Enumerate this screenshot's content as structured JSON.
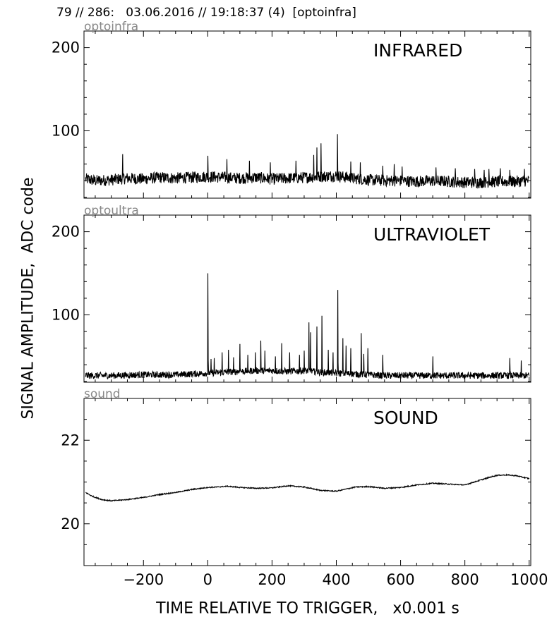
{
  "header": {
    "title": "79 // 286:   03.06.2016 // 19:18:37 (4)  [optoinfra]"
  },
  "axes": {
    "ylabel": "SIGNAL AMPLITUDE,  ADC code",
    "xlabel": "TIME RELATIVE TO TRIGGER,   x0.001 s"
  },
  "chart_data": [
    {
      "type": "line",
      "name": "optoinfra",
      "title": "INFRARED",
      "xlim": [
        -385,
        1005
      ],
      "ylim": [
        19,
        220
      ],
      "yticks": [
        100,
        200
      ],
      "xticks": [
        -200,
        0,
        200,
        400,
        600,
        800,
        1000
      ],
      "x": [
        -380,
        -350,
        -300,
        -250,
        -200,
        -150,
        -100,
        -50,
        0,
        50,
        100,
        150,
        200,
        250,
        300,
        350,
        400,
        450,
        500,
        550,
        600,
        650,
        700,
        750,
        800,
        850,
        900,
        950,
        1000
      ],
      "y": [
        42,
        40,
        41,
        43,
        42,
        44,
        43,
        44,
        45,
        44,
        43,
        44,
        42,
        43,
        44,
        45,
        46,
        43,
        41,
        40,
        40,
        39,
        40,
        39,
        38,
        38,
        39,
        39,
        40
      ],
      "noise": 7,
      "spikes": [
        [
          -265,
          72
        ],
        [
          0,
          70
        ],
        [
          60,
          66
        ],
        [
          130,
          64
        ],
        [
          195,
          62
        ],
        [
          275,
          64
        ],
        [
          330,
          71
        ],
        [
          340,
          80
        ],
        [
          352,
          85
        ],
        [
          404,
          96
        ],
        [
          445,
          63
        ],
        [
          475,
          62
        ],
        [
          545,
          58
        ],
        [
          580,
          60
        ],
        [
          605,
          57
        ],
        [
          710,
          56
        ],
        [
          770,
          55
        ],
        [
          830,
          54
        ],
        [
          860,
          53
        ],
        [
          875,
          54
        ],
        [
          910,
          55
        ],
        [
          940,
          53
        ],
        [
          985,
          54
        ]
      ]
    },
    {
      "type": "line",
      "name": "optoultra",
      "title": "ULTRAVIOLET",
      "xlim": [
        -385,
        1005
      ],
      "ylim": [
        19,
        220
      ],
      "yticks": [
        100,
        200
      ],
      "xticks": [
        -200,
        0,
        200,
        400,
        600,
        800,
        1000
      ],
      "x": [
        -380,
        -300,
        -200,
        -100,
        -50,
        0,
        50,
        100,
        150,
        200,
        250,
        300,
        350,
        400,
        450,
        500,
        550,
        600,
        700,
        800,
        900,
        1000
      ],
      "y": [
        27,
        27,
        28,
        28,
        29,
        30,
        31,
        32,
        33,
        33,
        32,
        33,
        31,
        30,
        29,
        28,
        27,
        27,
        27,
        27,
        27,
        27
      ],
      "noise": 4,
      "spikes": [
        [
          0,
          150
        ],
        [
          10,
          47
        ],
        [
          20,
          48
        ],
        [
          45,
          55
        ],
        [
          65,
          58
        ],
        [
          80,
          49
        ],
        [
          100,
          65
        ],
        [
          125,
          52
        ],
        [
          148,
          55
        ],
        [
          165,
          69
        ],
        [
          178,
          57
        ],
        [
          210,
          50
        ],
        [
          230,
          66
        ],
        [
          255,
          55
        ],
        [
          285,
          52
        ],
        [
          300,
          57
        ],
        [
          315,
          91
        ],
        [
          320,
          79
        ],
        [
          340,
          86
        ],
        [
          355,
          99
        ],
        [
          375,
          58
        ],
        [
          390,
          55
        ],
        [
          405,
          130
        ],
        [
          420,
          72
        ],
        [
          430,
          63
        ],
        [
          445,
          60
        ],
        [
          478,
          78
        ],
        [
          485,
          53
        ],
        [
          498,
          60
        ],
        [
          545,
          52
        ],
        [
          700,
          50
        ],
        [
          940,
          48
        ],
        [
          975,
          45
        ]
      ]
    },
    {
      "type": "line",
      "name": "sound",
      "title": "SOUND",
      "xlim": [
        -385,
        1005
      ],
      "ylim": [
        19,
        23
      ],
      "yticks": [
        20,
        22
      ],
      "xticks": [
        -200,
        0,
        200,
        400,
        600,
        800,
        1000
      ],
      "x": [
        -380,
        -360,
        -330,
        -300,
        -250,
        -200,
        -150,
        -100,
        -50,
        0,
        30,
        60,
        100,
        150,
        200,
        250,
        300,
        350,
        400,
        430,
        460,
        500,
        550,
        600,
        650,
        700,
        750,
        800,
        850,
        880,
        900,
        930,
        960,
        1000
      ],
      "y": [
        20.75,
        20.66,
        20.58,
        20.55,
        20.58,
        20.63,
        20.7,
        20.75,
        20.82,
        20.87,
        20.88,
        20.9,
        20.87,
        20.85,
        20.86,
        20.91,
        20.88,
        20.8,
        20.78,
        20.83,
        20.88,
        20.89,
        20.85,
        20.87,
        20.93,
        20.97,
        20.95,
        20.93,
        21.05,
        21.12,
        21.16,
        21.17,
        21.15,
        21.08
      ],
      "noise": 0.012,
      "spikes": []
    }
  ]
}
